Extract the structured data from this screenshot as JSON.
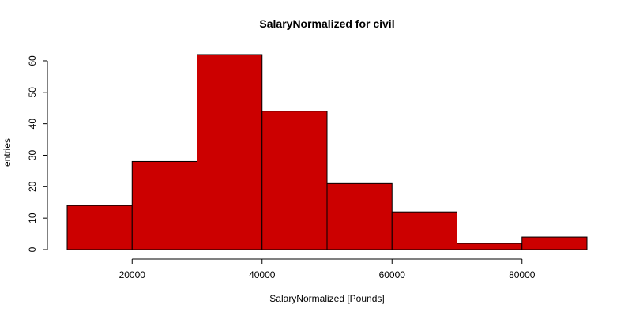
{
  "chart_data": {
    "type": "bar",
    "subtype": "histogram",
    "title": "SalaryNormalized for civil",
    "xlabel": "SalaryNormalized [Pounds]",
    "ylabel": "entries",
    "bins": [
      {
        "start": 10000,
        "end": 20000,
        "count": 14
      },
      {
        "start": 20000,
        "end": 30000,
        "count": 28
      },
      {
        "start": 30000,
        "end": 40000,
        "count": 62
      },
      {
        "start": 40000,
        "end": 50000,
        "count": 44
      },
      {
        "start": 50000,
        "end": 60000,
        "count": 21
      },
      {
        "start": 60000,
        "end": 70000,
        "count": 12
      },
      {
        "start": 70000,
        "end": 80000,
        "count": 2
      },
      {
        "start": 80000,
        "end": 90000,
        "count": 4
      }
    ],
    "xlim": [
      10000,
      90000
    ],
    "ylim": [
      0,
      62
    ],
    "x_ticks": [
      20000,
      40000,
      60000,
      80000
    ],
    "y_ticks": [
      0,
      10,
      20,
      30,
      40,
      50,
      60
    ],
    "bar_color": "#cc0000",
    "grid": false,
    "legend": "none"
  }
}
